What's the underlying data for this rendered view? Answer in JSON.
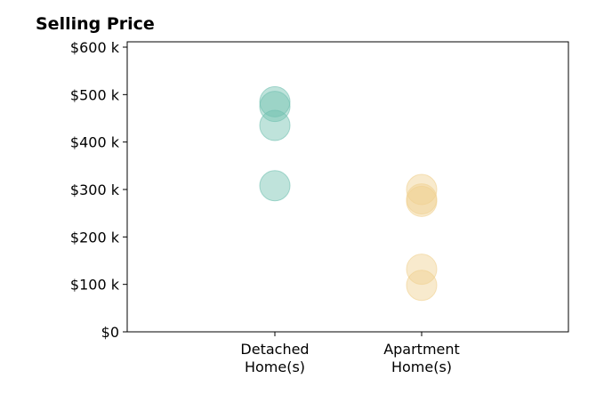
{
  "chart_data": {
    "type": "scatter",
    "title": "Selling Price",
    "categories": [
      "Detached\nHome(s)",
      "Apartment\nHome(s)"
    ],
    "y_ticks": [
      "$0",
      "$100 k",
      "$200 k",
      "$300 k",
      "$400 k",
      "$500 k",
      "$600 k"
    ],
    "ylim": [
      0,
      600000
    ],
    "grid": false,
    "series": [
      {
        "category_index": 0,
        "color": "#70c0b0",
        "values": [
          485000,
          475000,
          435000,
          308000
        ]
      },
      {
        "category_index": 1,
        "color": "#f0d090",
        "values": [
          300000,
          280000,
          275000,
          132000,
          98000
        ]
      }
    ]
  }
}
